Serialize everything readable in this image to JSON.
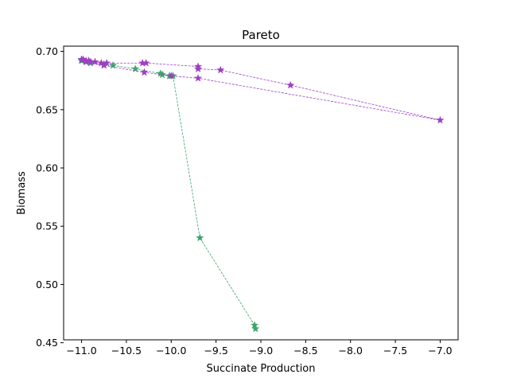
{
  "chart_data": {
    "type": "line",
    "title": "Pareto",
    "xlabel": "Succinate Production",
    "ylabel": "Biomass",
    "xlim": [
      -11.2,
      -6.8
    ],
    "ylim": [
      0.4525,
      0.7045
    ],
    "xticks": [
      -11.0,
      -10.5,
      -10.0,
      -9.5,
      -9.0,
      -8.5,
      -8.0,
      -7.5,
      -7.0
    ],
    "xtick_labels": [
      "−11.0",
      "−10.5",
      "−10.0",
      "−9.5",
      "−9.0",
      "−8.5",
      "−8.0",
      "−7.5",
      "−7.0"
    ],
    "yticks": [
      0.45,
      0.5,
      0.55,
      0.6,
      0.65,
      0.7
    ],
    "ytick_labels": [
      "0.45",
      "0.50",
      "0.55",
      "0.60",
      "0.65",
      "0.70"
    ],
    "grid": false,
    "legend": "none",
    "marker": "star",
    "line_style": "dashed",
    "series": [
      {
        "color": "#3aa66a",
        "x": [
          -11.0,
          -10.95,
          -10.9,
          -10.75,
          -10.65,
          -10.4,
          -10.12,
          -10.1,
          -10.02,
          -9.98,
          -9.68,
          -9.07,
          -9.06
        ],
        "y": [
          0.692,
          0.691,
          0.69,
          0.689,
          0.688,
          0.685,
          0.681,
          0.68,
          0.679,
          0.679,
          0.54,
          0.465,
          0.462
        ]
      },
      {
        "color": "#9e3fc4",
        "x": [
          -11.0,
          -10.98,
          -10.95,
          -10.92,
          -10.9,
          -10.85,
          -10.78,
          -10.72,
          -10.32,
          -10.28,
          -9.7,
          -9.7,
          -9.45,
          -8.67,
          -7.0,
          -9.7,
          -10.0,
          -10.3,
          -10.75,
          -10.95,
          -11.0
        ],
        "y": [
          0.693,
          0.693,
          0.692,
          0.692,
          0.691,
          0.691,
          0.69,
          0.69,
          0.69,
          0.69,
          0.687,
          0.685,
          0.684,
          0.671,
          0.641,
          0.677,
          0.679,
          0.682,
          0.688,
          0.691,
          0.693
        ]
      }
    ]
  }
}
